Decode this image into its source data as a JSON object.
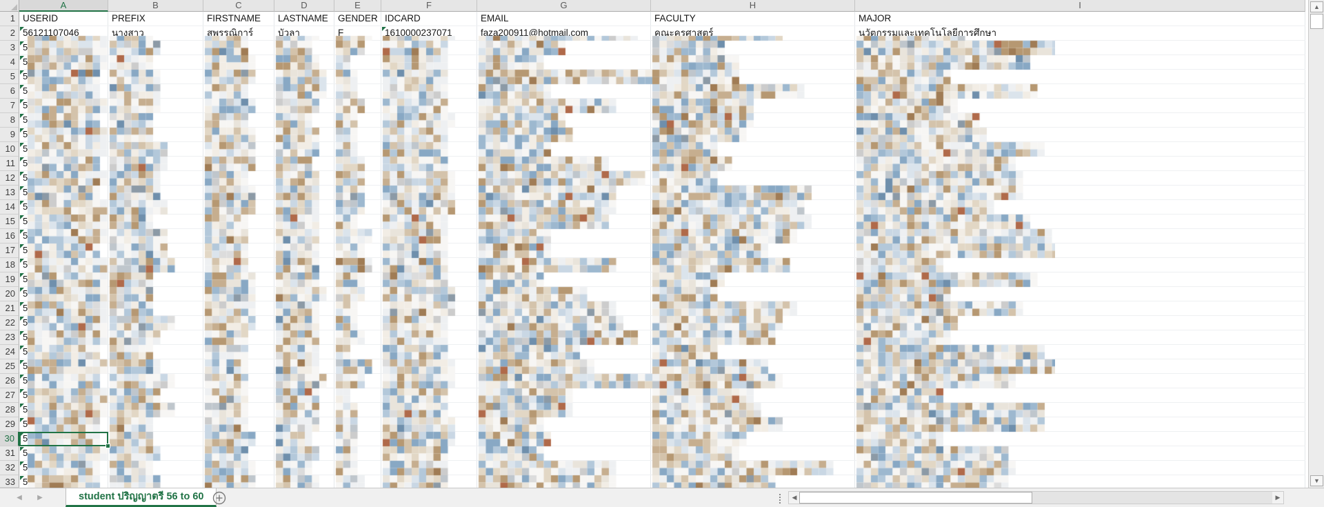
{
  "sheet": {
    "column_letters": [
      "A",
      "B",
      "C",
      "D",
      "E",
      "F",
      "G",
      "H",
      "I"
    ],
    "visible_row_count": 33,
    "header_row": [
      "USERID",
      "PREFIX",
      "FIRSTNAME",
      "LASTNAME",
      "GENDER",
      "IDCARD",
      "EMAIL",
      "FACULTY",
      "MAJOR"
    ],
    "row2_values": [
      "56121107046",
      "นางสาว",
      "สุพรรณิการ์",
      "บัวลา",
      "F",
      "1610000237071",
      "faza200911@hotmail.com",
      "คณะครุศาสตร์",
      "นวัตกรรมและเทคโนโลยีการศึกษา"
    ],
    "redacted_leading_char": "5",
    "error_indicator_cells": "column A rows 2-33 and cell F2",
    "selection": {
      "active_cell": "A30",
      "selected_column": "A",
      "selected_row": 30
    }
  },
  "tab_bar": {
    "active_tab_label": "student ปริญญาตรี 56 to 60",
    "new_sheet_label": "+"
  },
  "colors": {
    "accent_green": "#217346",
    "header_bg": "#e6e6e6",
    "selected_header_bg": "#d9d9d9",
    "mosaic_palette": [
      "#f7f6f4",
      "#eef0f2",
      "#f2ede5",
      "#e9e4db",
      "#dbe4ec",
      "#c9d7e4",
      "#b3c8da",
      "#9db8cf",
      "#88a8c4",
      "#e2d7c5",
      "#d4c3ab",
      "#c6ae8f",
      "#b69872",
      "#dcdcdc",
      "#cccccc",
      "#bfc6cc",
      "#6f8fac",
      "#a07c55",
      "#8c9aa6",
      "#b06a4a"
    ]
  }
}
